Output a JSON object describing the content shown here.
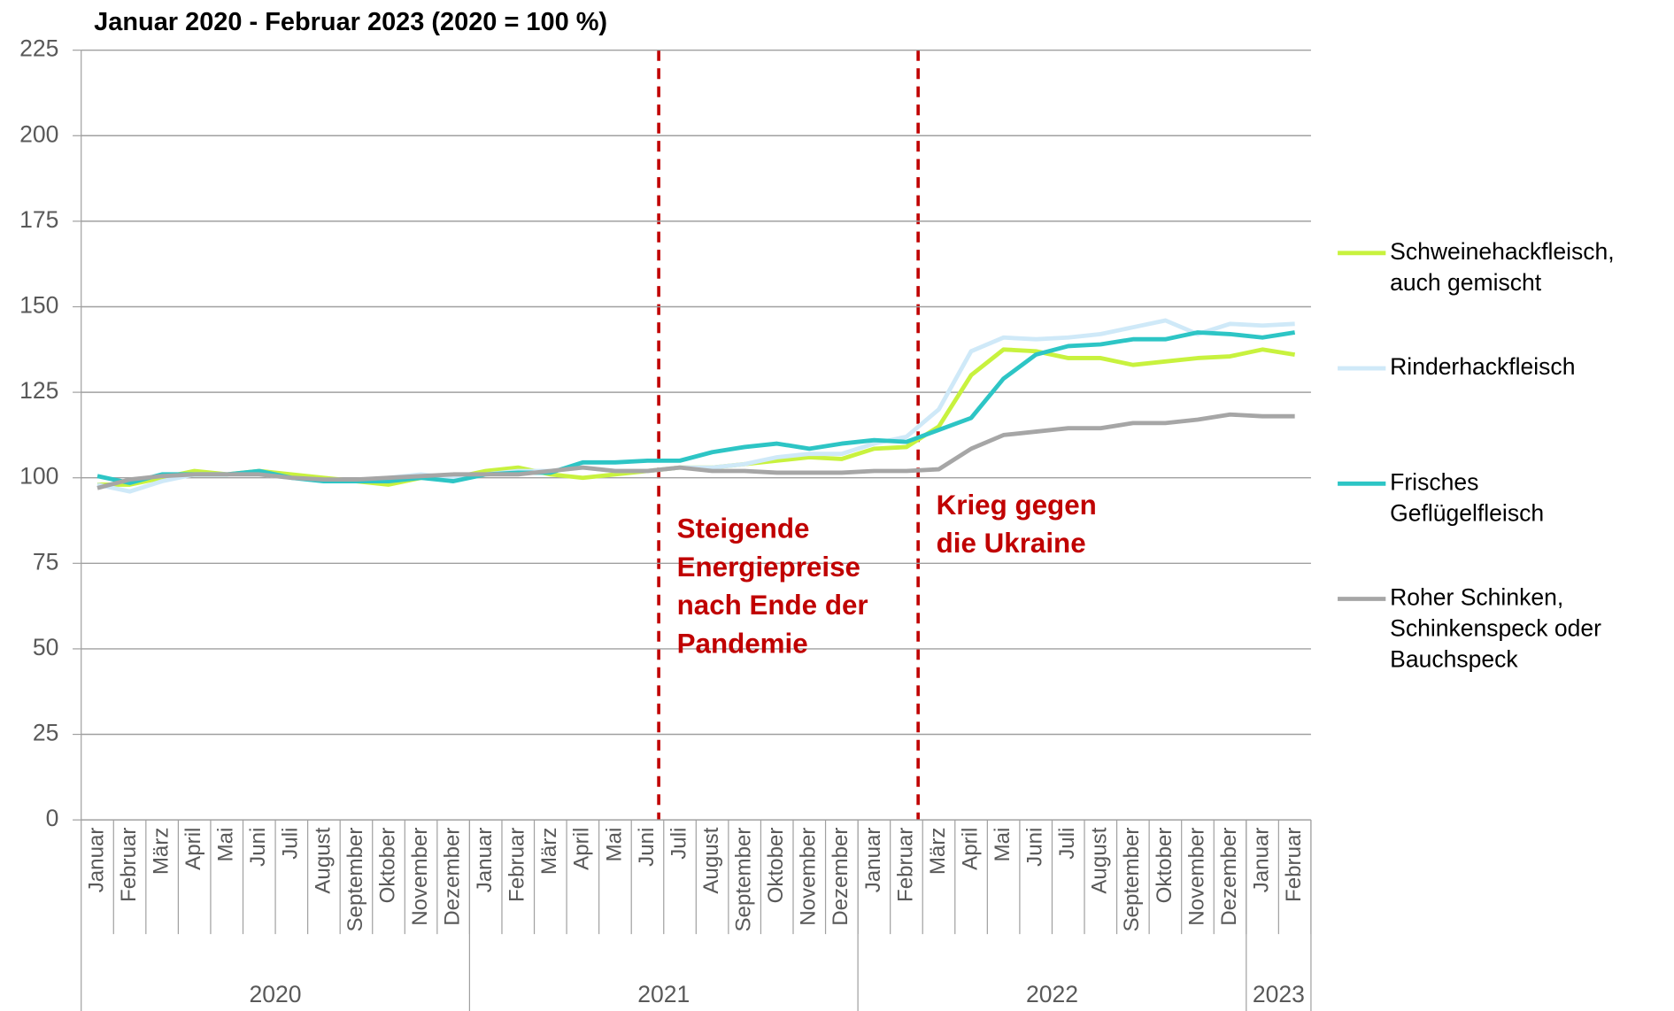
{
  "chart_data": {
    "type": "line",
    "title": "Januar 2020 - Februar 2023 (2020 = 100 %)",
    "categories": [
      "Januar",
      "Februar",
      "März",
      "April",
      "Mai",
      "Juni",
      "Juli",
      "August",
      "September",
      "Oktober",
      "November",
      "Dezember",
      "Januar",
      "Februar",
      "März",
      "April",
      "Mai",
      "Juni",
      "Juli",
      "August",
      "September",
      "Oktober",
      "November",
      "Dezember",
      "Januar",
      "Februar",
      "März",
      "April",
      "Mai",
      "Juni",
      "Juli",
      "August",
      "September",
      "Oktober",
      "November",
      "Dezember",
      "Januar",
      "Februar"
    ],
    "category_groups": [
      "2020",
      "2021",
      "2022",
      "2023"
    ],
    "series": [
      {
        "name": "Schweinehackfleisch,\nauch gemischt",
        "color": "#c8f23e",
        "values": [
          98,
          98,
          100,
          102,
          101,
          102,
          101,
          100,
          99,
          98,
          100,
          100,
          102,
          103,
          101,
          100,
          101,
          102,
          103,
          103,
          104,
          105,
          106,
          105.5,
          108.5,
          109,
          115,
          130,
          137.5,
          137,
          135,
          135,
          133,
          134,
          135,
          135.5,
          137.5,
          136
        ]
      },
      {
        "name": "Rinderhackfleisch",
        "color": "#cfe9f8",
        "values": [
          98,
          96,
          99,
          101,
          101,
          101,
          100,
          99,
          99,
          100,
          101,
          100,
          101,
          102,
          102,
          103,
          102,
          102,
          103,
          103,
          104,
          106,
          107,
          107,
          110,
          112,
          120,
          137,
          141,
          140.5,
          141,
          142,
          144,
          146,
          142,
          145,
          144.5,
          145
        ]
      },
      {
        "name": "Frisches\nGeflügelfleisch",
        "color": "#2dc5c5",
        "values": [
          100.5,
          98.5,
          101,
          101,
          101,
          102,
          100,
          99,
          99,
          99,
          100,
          99,
          101,
          101.5,
          101.5,
          104.5,
          104.5,
          105,
          105,
          107.5,
          109,
          110,
          108.5,
          110,
          111,
          110.5,
          114,
          117.5,
          129,
          136,
          138.5,
          139,
          140.5,
          140.5,
          142.5,
          142,
          141,
          142.5
        ]
      },
      {
        "name": "Roher Schinken,\nSchinkenspeck oder\nBauchspeck",
        "color": "#a6a6a6",
        "values": [
          97,
          99.5,
          100.5,
          101,
          101,
          101,
          100,
          99.5,
          99.5,
          100,
          100.5,
          101,
          101,
          101,
          102,
          103,
          102,
          102,
          103,
          102,
          102,
          101.5,
          101.5,
          101.5,
          102,
          102,
          102.5,
          108.5,
          112.5,
          113.5,
          114.5,
          114.5,
          116,
          116,
          117,
          118.5,
          118,
          118
        ]
      }
    ],
    "annotations": [
      "Steigende\nEnergiepreise\nnach Ende der\nPandemie",
      "Krieg gegen\ndie Ukraine"
    ],
    "ylim": [
      0,
      225
    ],
    "yticks": [
      0,
      25,
      50,
      75,
      100,
      125,
      150,
      175,
      200,
      225
    ],
    "grid": true
  }
}
